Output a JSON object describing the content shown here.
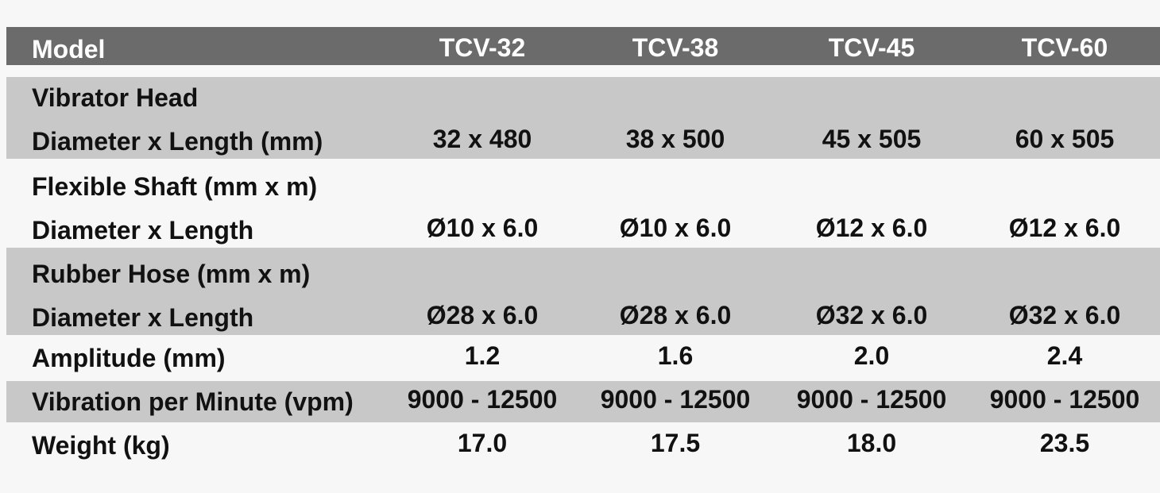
{
  "header": {
    "label": "Model",
    "models": [
      "TCV-32",
      "TCV-38",
      "TCV-45",
      "TCV-60"
    ]
  },
  "rows": [
    {
      "label": [
        "Vibrator Head",
        "Diameter x Length (mm)"
      ],
      "values": [
        "32 x 480",
        "38 x 500",
        "45 x 505",
        "60 x 505"
      ]
    },
    {
      "label": [
        "Flexible Shaft (mm x m)",
        "Diameter x Length"
      ],
      "values": [
        "Ø10 x 6.0",
        "Ø10 x 6.0",
        "Ø12 x 6.0",
        "Ø12 x 6.0"
      ]
    },
    {
      "label": [
        "Rubber Hose (mm x m)",
        "Diameter x Length"
      ],
      "values": [
        "Ø28 x 6.0",
        "Ø28 x 6.0",
        "Ø32 x 6.0",
        "Ø32 x 6.0"
      ]
    },
    {
      "label": [
        "Amplitude (mm)"
      ],
      "values": [
        "1.2",
        "1.6",
        "2.0",
        "2.4"
      ]
    },
    {
      "label": [
        "Vibration per Minute (vpm)"
      ],
      "values": [
        "9000 - 12500",
        "9000 - 12500",
        "9000 - 12500",
        "9000 - 12500"
      ]
    },
    {
      "label": [
        "Weight (kg)"
      ],
      "values": [
        "17.0",
        "17.5",
        "18.0",
        "23.5"
      ]
    }
  ]
}
